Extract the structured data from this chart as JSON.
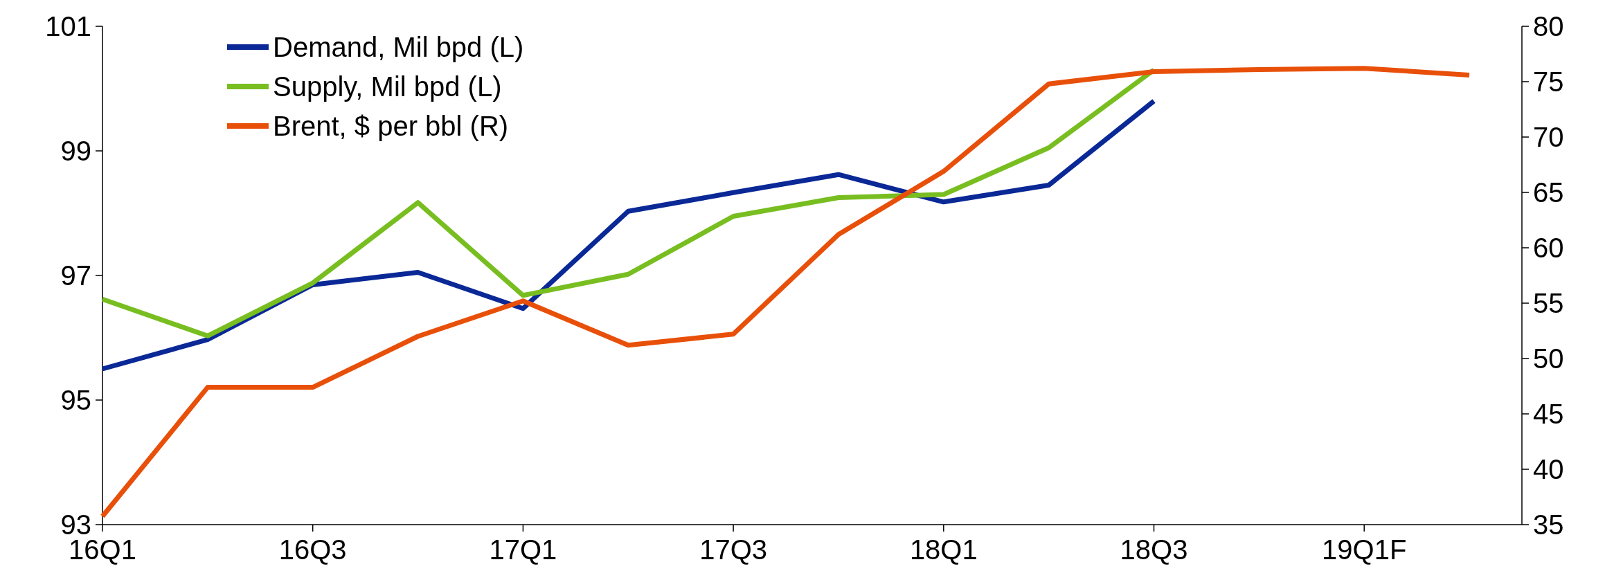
{
  "chart_data": {
    "type": "line",
    "categories": [
      "16Q1",
      null,
      "16Q3",
      null,
      "17Q1",
      null,
      "17Q3",
      null,
      "18Q1",
      null,
      "18Q3",
      null,
      "19Q1F",
      null
    ],
    "ylim": [
      93,
      101
    ],
    "yticks": [
      93,
      95,
      97,
      99,
      101
    ],
    "y2lim": [
      35,
      80
    ],
    "y2ticks": [
      35,
      40,
      45,
      50,
      55,
      60,
      65,
      70,
      75,
      80
    ],
    "grid": false,
    "legend": "top left",
    "line_style": "solid",
    "marker": "none",
    "series": [
      {
        "name": "Demand, Mil bpd (L)",
        "color": "#0a2896",
        "values": [
          95.5,
          95.97,
          96.85,
          97.05,
          96.47,
          98.03,
          98.33,
          98.62,
          98.18,
          98.45,
          99.8,
          null,
          null,
          null
        ]
      },
      {
        "name": "Supply, Mil bpd (L)",
        "color": "#78be20",
        "values": [
          96.62,
          96.03,
          96.88,
          98.17,
          96.68,
          97.02,
          97.95,
          98.25,
          98.3,
          99.05,
          100.3,
          null,
          null,
          null
        ]
      },
      {
        "name": "Brent, $ per bbl (R)",
        "color": "#e8500a",
        "axis": "y2",
        "values": [
          35.75,
          47.4,
          47.4,
          52.0,
          55.2,
          51.2,
          52.2,
          61.2,
          66.9,
          74.8,
          75.9,
          76.1,
          76.2,
          75.6
        ]
      }
    ]
  }
}
